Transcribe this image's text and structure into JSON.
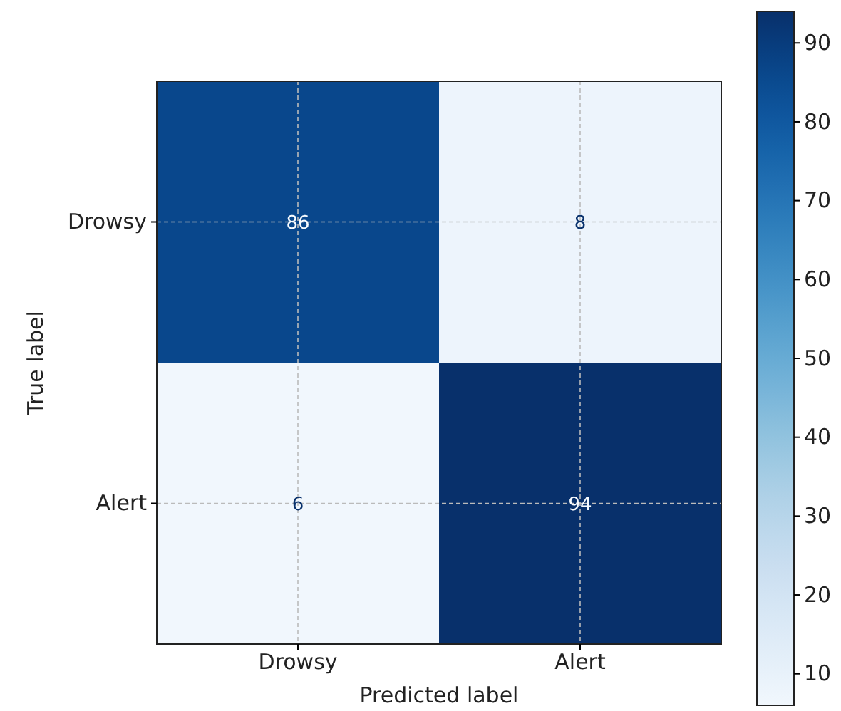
{
  "chart_data": {
    "type": "heatmap",
    "xlabel": "Predicted label",
    "ylabel": "True label",
    "categories": [
      "Drowsy",
      "Alert"
    ],
    "y_categories": [
      "Drowsy",
      "Alert"
    ],
    "cells": [
      [
        86,
        8
      ],
      [
        6,
        94
      ]
    ],
    "clim": [
      6,
      94
    ],
    "cticks": [
      10,
      20,
      30,
      40,
      50,
      60,
      70,
      80,
      90
    ],
    "grid": true,
    "data_labels": true
  }
}
